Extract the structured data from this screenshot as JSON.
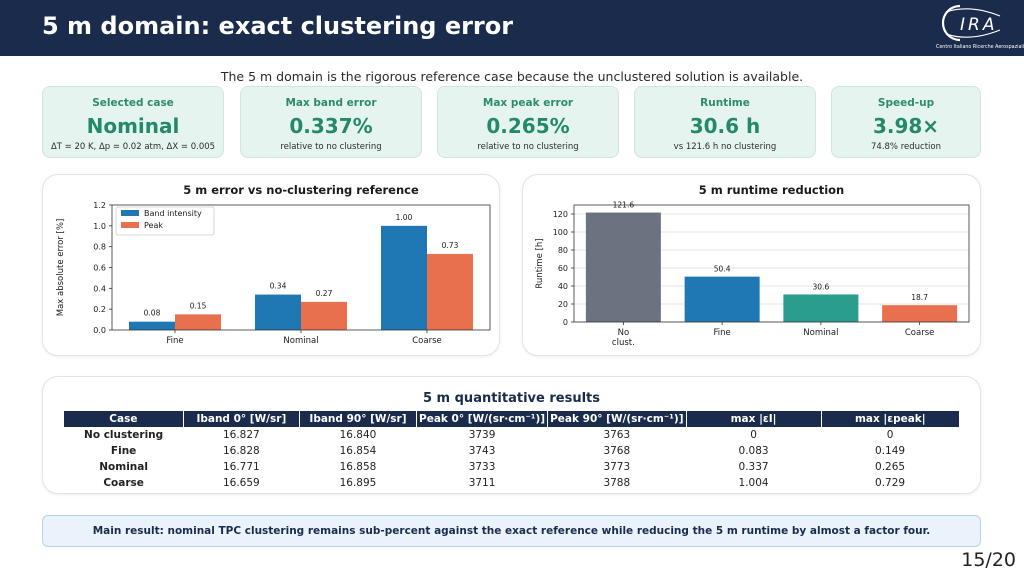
{
  "header": {
    "title": "5 m domain: exact clustering error",
    "logo_text": "CIRA",
    "logo_caption": "Centro Italiano Ricerche Aerospaziali"
  },
  "subtitle": "The 5 m domain is the rigorous reference case because the unclustered solution is available.",
  "kpis": [
    {
      "label": "Selected case",
      "value": "Nominal",
      "sub": "ΔT = 20 K, Δp = 0.02 atm, ΔX = 0.005"
    },
    {
      "label": "Max band error",
      "value": "0.337%",
      "sub": "relative to no clustering"
    },
    {
      "label": "Max peak error",
      "value": "0.265%",
      "sub": "relative to no clustering"
    },
    {
      "label": "Runtime",
      "value": "30.6 h",
      "sub": "vs 121.6 h no clustering"
    },
    {
      "label": "Speed-up",
      "value": "3.98×",
      "sub": "74.8% reduction"
    }
  ],
  "chart_data": [
    {
      "type": "bar",
      "title": "5 m error vs no-clustering reference",
      "ylabel": "Max absolute error [%]",
      "xlabel": "",
      "categories": [
        "Fine",
        "Nominal",
        "Coarse"
      ],
      "series": [
        {
          "name": "Band intensity",
          "values": [
            0.08,
            0.34,
            1.0
          ],
          "labels": [
            "0.08",
            "0.34",
            "1.00"
          ],
          "color": "#1f77b4"
        },
        {
          "name": "Peak",
          "values": [
            0.15,
            0.27,
            0.73
          ],
          "labels": [
            "0.15",
            "0.27",
            "0.73"
          ],
          "color": "#e8704f"
        }
      ],
      "ylim": [
        0,
        1.2
      ],
      "yticks": [
        "0.0",
        "0.2",
        "0.4",
        "0.6",
        "0.8",
        "1.0",
        "1.2"
      ],
      "legend": "top-left",
      "grid": false
    },
    {
      "type": "bar",
      "title": "5 m runtime reduction",
      "ylabel": "Runtime [h]",
      "xlabel": "",
      "categories": [
        "No\nclust.",
        "Fine",
        "Nominal",
        "Coarse"
      ],
      "values": [
        121.6,
        50.4,
        30.6,
        18.7
      ],
      "labels": [
        "121.6",
        "50.4",
        "30.6",
        "18.7"
      ],
      "colors": [
        "#6b7280",
        "#1f77b4",
        "#2a9d8f",
        "#e8704f"
      ],
      "ylim": [
        0,
        130
      ],
      "yticks": [
        "0",
        "20",
        "40",
        "60",
        "80",
        "100",
        "120"
      ],
      "grid": true
    }
  ],
  "results": {
    "title": "5 m quantitative results",
    "columns": [
      "Case",
      "Iband 0° [W/sr]",
      "Iband 90° [W/sr]",
      "Peak 0° [W/(sr·cm⁻¹)]",
      "Peak 90° [W/(sr·cm⁻¹)]",
      "max |εI|",
      "max |εpeak|"
    ],
    "rows": [
      [
        "No clustering",
        "16.827",
        "16.840",
        "3739",
        "3763",
        "0",
        "0"
      ],
      [
        "Fine",
        "16.828",
        "16.854",
        "3743",
        "3768",
        "0.083",
        "0.149"
      ],
      [
        "Nominal",
        "16.771",
        "16.858",
        "3733",
        "3773",
        "0.337",
        "0.265"
      ],
      [
        "Coarse",
        "16.659",
        "16.895",
        "3711",
        "3788",
        "1.004",
        "0.729"
      ]
    ]
  },
  "main_result": "Main result: nominal TPC clustering remains sub-percent against the exact reference while reducing the 5 m runtime by almost a factor four.",
  "page": "15/20"
}
